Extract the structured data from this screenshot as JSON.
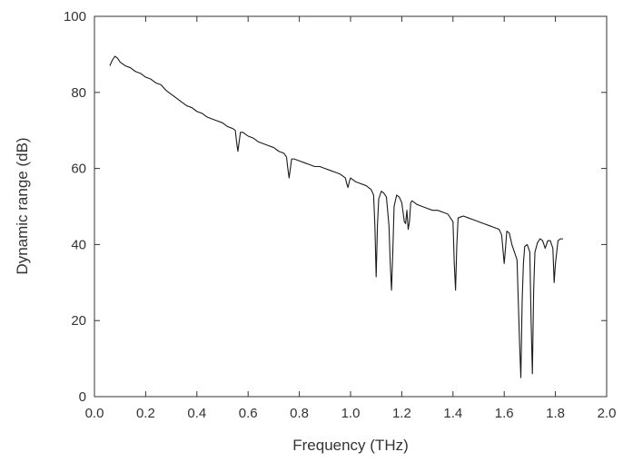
{
  "chart_data": {
    "type": "line",
    "xlabel": "Frequency (THz)",
    "ylabel": "Dynamic range (dB)",
    "xlim": [
      0.0,
      2.0
    ],
    "ylim": [
      0,
      100
    ],
    "xticks": [
      "0.0",
      "0.2",
      "0.4",
      "0.6",
      "0.8",
      "1.0",
      "1.2",
      "1.4",
      "1.6",
      "1.8",
      "2.0"
    ],
    "yticks": [
      "0",
      "20",
      "40",
      "60",
      "80",
      "100"
    ],
    "grid": false,
    "line_color": "#1a1a1a",
    "series": [
      {
        "x": [
          0.06,
          0.07,
          0.08,
          0.09,
          0.1,
          0.12,
          0.14,
          0.16,
          0.18,
          0.2,
          0.22,
          0.24,
          0.26,
          0.28,
          0.3,
          0.32,
          0.34,
          0.36,
          0.38,
          0.4,
          0.42,
          0.44,
          0.46,
          0.48,
          0.5,
          0.52,
          0.54,
          0.55,
          0.555,
          0.56,
          0.565,
          0.57,
          0.58,
          0.6,
          0.62,
          0.64,
          0.66,
          0.68,
          0.7,
          0.72,
          0.74,
          0.75,
          0.755,
          0.76,
          0.765,
          0.77,
          0.78,
          0.8,
          0.82,
          0.84,
          0.86,
          0.88,
          0.9,
          0.92,
          0.94,
          0.96,
          0.98,
          0.985,
          0.99,
          0.995,
          1.0,
          1.02,
          1.04,
          1.06,
          1.08,
          1.09,
          1.095,
          1.1,
          1.105,
          1.11,
          1.12,
          1.13,
          1.14,
          1.15,
          1.155,
          1.16,
          1.165,
          1.17,
          1.18,
          1.19,
          1.2,
          1.21,
          1.215,
          1.22,
          1.225,
          1.23,
          1.235,
          1.24,
          1.26,
          1.28,
          1.3,
          1.32,
          1.34,
          1.36,
          1.38,
          1.4,
          1.405,
          1.41,
          1.415,
          1.42,
          1.44,
          1.46,
          1.48,
          1.5,
          1.52,
          1.54,
          1.56,
          1.58,
          1.59,
          1.6,
          1.605,
          1.61,
          1.62,
          1.63,
          1.64,
          1.65,
          1.66,
          1.665,
          1.67,
          1.675,
          1.68,
          1.69,
          1.7,
          1.705,
          1.71,
          1.715,
          1.72,
          1.73,
          1.74,
          1.75,
          1.76,
          1.77,
          1.78,
          1.79,
          1.795,
          1.8,
          1.81,
          1.82,
          1.83
        ],
        "y": [
          87,
          88.5,
          89.5,
          89,
          88,
          87,
          86.5,
          85.5,
          85,
          84,
          83.5,
          82.5,
          82,
          80.5,
          79.5,
          78.5,
          77.5,
          76.5,
          76,
          75,
          74.5,
          73.5,
          73,
          72.5,
          72,
          71,
          70.5,
          70,
          67,
          64.5,
          67,
          69.5,
          69.5,
          68.5,
          68,
          67,
          66.5,
          66,
          65.5,
          64.5,
          64,
          63,
          60,
          57.5,
          60,
          62.5,
          62.5,
          62,
          61.5,
          61,
          60.5,
          60.5,
          60,
          59.5,
          59,
          58.5,
          57.5,
          56,
          55,
          56.5,
          57.5,
          56.5,
          56,
          55.5,
          54.5,
          53,
          45,
          31.5,
          45,
          52,
          54,
          53.5,
          52.5,
          45,
          35,
          28,
          38,
          50,
          53,
          52.5,
          51,
          46,
          45.5,
          49,
          44,
          46,
          51,
          51.5,
          50.5,
          50,
          49.5,
          49,
          49,
          48.5,
          48,
          46,
          35,
          28,
          40,
          47,
          47.5,
          47,
          46.5,
          46,
          45.5,
          45,
          44.5,
          44,
          42.5,
          35,
          39,
          43.5,
          43,
          40,
          38,
          36,
          14,
          5,
          25,
          35,
          39.5,
          40,
          38,
          20,
          6,
          28,
          38,
          40.5,
          41.5,
          41,
          39,
          41,
          41,
          39,
          30,
          35,
          41,
          41.5,
          41.5
        ]
      }
    ]
  }
}
